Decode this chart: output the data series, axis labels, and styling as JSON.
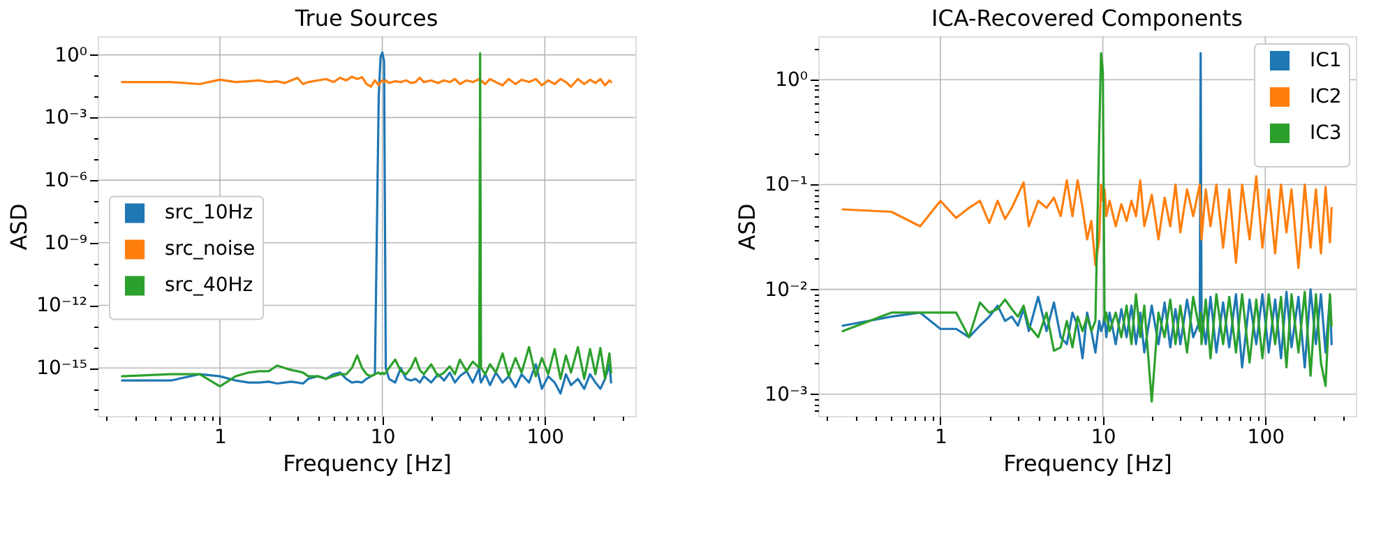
{
  "chart_data": [
    {
      "type": "line",
      "title": "True Sources",
      "xlabel": "Frequency [Hz]",
      "ylabel": "ASD",
      "log": "xy",
      "grid": true,
      "legend": "left",
      "line_style": "solid",
      "marker": "none",
      "xlim": [
        0.177,
        361
      ],
      "xticks": [
        {
          "value": 0.2,
          "label": null
        },
        {
          "value": 0.3,
          "label": null
        },
        {
          "value": 0.4,
          "label": null
        },
        {
          "value": 0.5,
          "label": null
        },
        {
          "value": 0.6,
          "label": null
        },
        {
          "value": 0.7,
          "label": null
        },
        {
          "value": 0.8,
          "label": null
        },
        {
          "value": 0.9,
          "label": null
        },
        1,
        {
          "value": 2,
          "label": null
        },
        {
          "value": 3,
          "label": null
        },
        {
          "value": 4,
          "label": null
        },
        {
          "value": 5,
          "label": null
        },
        {
          "value": 6,
          "label": null
        },
        {
          "value": 7,
          "label": null
        },
        {
          "value": 8,
          "label": null
        },
        {
          "value": 9,
          "label": null
        },
        10,
        {
          "value": 20,
          "label": null
        },
        {
          "value": 30,
          "label": null
        },
        {
          "value": 40,
          "label": null
        },
        {
          "value": 50,
          "label": null
        },
        {
          "value": 60,
          "label": null
        },
        {
          "value": 70,
          "label": null
        },
        {
          "value": 80,
          "label": null
        },
        {
          "value": 90,
          "label": null
        },
        100,
        {
          "value": 200,
          "label": null
        },
        {
          "value": 300,
          "label": null
        }
      ],
      "ylim": [
        5e-18,
        7.8
      ],
      "yticks": [
        {
          "value": 1,
          "label": "10⁰"
        },
        {
          "value": 0.1,
          "label": null
        },
        {
          "value": 0.01,
          "label": null
        },
        {
          "value": 0.001,
          "label": "10⁻³"
        },
        {
          "value": 0.0001,
          "label": null
        },
        {
          "value": 1e-05,
          "label": null
        },
        {
          "value": 1e-06,
          "label": "10⁻⁶"
        },
        {
          "value": 1e-07,
          "label": null
        },
        {
          "value": 1e-08,
          "label": null
        },
        {
          "value": 1e-09,
          "label": "10⁻⁹"
        },
        {
          "value": 1e-10,
          "label": null
        },
        {
          "value": 1e-11,
          "label": null
        },
        {
          "value": 1e-12,
          "label": "10⁻¹²"
        },
        {
          "value": 1e-13,
          "label": null
        },
        {
          "value": 1e-14,
          "label": null
        },
        {
          "value": 1e-15,
          "label": "10⁻¹⁵"
        },
        {
          "value": 1e-16,
          "label": null
        },
        {
          "value": 1e-17,
          "label": null
        }
      ],
      "x": [
        0.25,
        0.5,
        0.75,
        1,
        1.25,
        1.5,
        1.75,
        2,
        2.25,
        2.5,
        2.75,
        3,
        3.25,
        3.5,
        4,
        4.5,
        5,
        5.5,
        6,
        6.5,
        7,
        7.5,
        8,
        8.5,
        9,
        9.5,
        9.75,
        10,
        10.25,
        10.5,
        11,
        12,
        13,
        14,
        15,
        16,
        17,
        18,
        20,
        22,
        24,
        26,
        28,
        30,
        33,
        36,
        39.5,
        40,
        40.5,
        43,
        46,
        50,
        55,
        60,
        66,
        72,
        80,
        88,
        96,
        105,
        115,
        125,
        135,
        145,
        160,
        175,
        190,
        205,
        220,
        235,
        250,
        256
      ],
      "series": [
        {
          "name": "src_10Hz",
          "color": "#1f77b4",
          "values": [
            2.5e-16,
            2.5e-16,
            5e-16,
            4e-16,
            2.5e-16,
            2e-16,
            2e-16,
            2.2e-16,
            1.8e-16,
            2e-16,
            2.2e-16,
            2e-16,
            1.8e-16,
            3e-16,
            4e-16,
            3e-16,
            5e-16,
            6e-16,
            3e-16,
            2e-16,
            2.2e-16,
            2e-16,
            3e-16,
            4e-16,
            5e-16,
            0.01,
            0.8,
            1.3,
            0.5,
            1e-15,
            3e-16,
            2e-16,
            1e-15,
            3e-16,
            2.5e-16,
            3e-16,
            2e-16,
            4e-16,
            2e-16,
            5e-16,
            2.5e-16,
            6e-16,
            2e-16,
            4e-16,
            7e-16,
            2e-16,
            1e-15,
            3e-16,
            2e-16,
            5e-16,
            1.5e-16,
            6e-16,
            2e-16,
            4e-16,
            1.2e-16,
            5e-16,
            2e-16,
            1.5e-15,
            1e-16,
            4e-16,
            2e-16,
            6e-17,
            5e-16,
            1.5e-16,
            3e-16,
            1e-16,
            5e-16,
            2e-16,
            1e-16,
            3e-16,
            1.5e-15,
            2e-16
          ]
        },
        {
          "name": "src_noise",
          "color": "#ff7f0e",
          "values": [
            0.05,
            0.05,
            0.04,
            0.065,
            0.05,
            0.055,
            0.06,
            0.05,
            0.055,
            0.045,
            0.06,
            0.08,
            0.04,
            0.05,
            0.06,
            0.07,
            0.05,
            0.08,
            0.06,
            0.09,
            0.07,
            0.085,
            0.04,
            0.03,
            0.06,
            0.035,
            0.05,
            0.06,
            0.05,
            0.06,
            0.045,
            0.055,
            0.05,
            0.06,
            0.045,
            0.05,
            0.08,
            0.05,
            0.06,
            0.045,
            0.06,
            0.05,
            0.07,
            0.04,
            0.06,
            0.05,
            0.07,
            0.045,
            0.06,
            0.04,
            0.07,
            0.05,
            0.035,
            0.07,
            0.04,
            0.065,
            0.05,
            0.07,
            0.035,
            0.06,
            0.04,
            0.07,
            0.05,
            0.03,
            0.07,
            0.04,
            0.065,
            0.045,
            0.07,
            0.035,
            0.06,
            0.05
          ]
        },
        {
          "name": "src_40Hz",
          "color": "#2ca02c",
          "values": [
            4e-16,
            5e-16,
            5e-16,
            1.3e-16,
            4e-16,
            6e-16,
            7e-16,
            7e-16,
            1.3e-15,
            1e-15,
            8e-16,
            7e-16,
            6e-16,
            4e-16,
            4e-16,
            3e-16,
            4e-16,
            5e-16,
            5e-16,
            1e-15,
            4e-15,
            1e-15,
            5e-16,
            4e-16,
            5e-16,
            6e-16,
            5e-16,
            6e-16,
            5e-16,
            6e-16,
            1e-15,
            2.5e-15,
            7e-16,
            5e-16,
            1e-15,
            3e-15,
            8e-16,
            5e-16,
            1.5e-15,
            4e-16,
            6e-16,
            1.2e-15,
            5e-16,
            2.5e-15,
            7e-16,
            2e-15,
            1e-15,
            1.2,
            1e-15,
            5e-16,
            1.5e-15,
            6e-16,
            5e-15,
            4e-16,
            3e-15,
            6e-16,
            1e-14,
            4e-16,
            3e-15,
            5e-16,
            8e-15,
            3e-16,
            4e-15,
            6e-16,
            1e-14,
            3e-16,
            8e-15,
            5e-16,
            9e-15,
            3e-16,
            5e-15,
            6e-16
          ]
        }
      ]
    },
    {
      "type": "line",
      "title": "ICA-Recovered Components",
      "xlabel": "Frequency [Hz]",
      "ylabel": "ASD",
      "log": "xy",
      "grid": true,
      "legend": "top right",
      "line_style": "solid",
      "marker": "none",
      "xlim": [
        0.177,
        361
      ],
      "xticks": [
        {
          "value": 0.2,
          "label": null
        },
        {
          "value": 0.3,
          "label": null
        },
        {
          "value": 0.4,
          "label": null
        },
        {
          "value": 0.5,
          "label": null
        },
        {
          "value": 0.6,
          "label": null
        },
        {
          "value": 0.7,
          "label": null
        },
        {
          "value": 0.8,
          "label": null
        },
        {
          "value": 0.9,
          "label": null
        },
        1,
        {
          "value": 2,
          "label": null
        },
        {
          "value": 3,
          "label": null
        },
        {
          "value": 4,
          "label": null
        },
        {
          "value": 5,
          "label": null
        },
        {
          "value": 6,
          "label": null
        },
        {
          "value": 7,
          "label": null
        },
        {
          "value": 8,
          "label": null
        },
        {
          "value": 9,
          "label": null
        },
        10,
        {
          "value": 20,
          "label": null
        },
        {
          "value": 30,
          "label": null
        },
        {
          "value": 40,
          "label": null
        },
        {
          "value": 50,
          "label": null
        },
        {
          "value": 60,
          "label": null
        },
        {
          "value": 70,
          "label": null
        },
        {
          "value": 80,
          "label": null
        },
        {
          "value": 90,
          "label": null
        },
        100,
        {
          "value": 200,
          "label": null
        },
        {
          "value": 300,
          "label": null
        }
      ],
      "ylim": [
        0.00062,
        2.6
      ],
      "yticks": [
        {
          "value": 0.0007,
          "label": null
        },
        {
          "value": 0.0008,
          "label": null
        },
        {
          "value": 0.0009,
          "label": null
        },
        {
          "value": 0.001,
          "label": "10⁻³"
        },
        {
          "value": 0.002,
          "label": null
        },
        {
          "value": 0.003,
          "label": null
        },
        {
          "value": 0.004,
          "label": null
        },
        {
          "value": 0.005,
          "label": null
        },
        {
          "value": 0.006,
          "label": null
        },
        {
          "value": 0.007,
          "label": null
        },
        {
          "value": 0.008,
          "label": null
        },
        {
          "value": 0.009,
          "label": null
        },
        {
          "value": 0.01,
          "label": "10⁻²"
        },
        {
          "value": 0.02,
          "label": null
        },
        {
          "value": 0.03,
          "label": null
        },
        {
          "value": 0.04,
          "label": null
        },
        {
          "value": 0.05,
          "label": null
        },
        {
          "value": 0.06,
          "label": null
        },
        {
          "value": 0.07,
          "label": null
        },
        {
          "value": 0.08,
          "label": null
        },
        {
          "value": 0.09,
          "label": null
        },
        {
          "value": 0.1,
          "label": "10⁻¹"
        },
        {
          "value": 0.2,
          "label": null
        },
        {
          "value": 0.3,
          "label": null
        },
        {
          "value": 0.4,
          "label": null
        },
        {
          "value": 0.5,
          "label": null
        },
        {
          "value": 0.6,
          "label": null
        },
        {
          "value": 0.7,
          "label": null
        },
        {
          "value": 0.8,
          "label": null
        },
        {
          "value": 0.9,
          "label": null
        },
        {
          "value": 1,
          "label": "10⁰"
        },
        {
          "value": 2,
          "label": null
        }
      ],
      "x": [
        0.25,
        0.5,
        0.75,
        1,
        1.25,
        1.5,
        1.75,
        2,
        2.25,
        2.5,
        2.75,
        3,
        3.25,
        3.5,
        4,
        4.5,
        5,
        5.5,
        6,
        6.5,
        7,
        7.5,
        8,
        8.5,
        9,
        9.5,
        9.75,
        10,
        10.25,
        10.5,
        11,
        12,
        13,
        14,
        15,
        16,
        17,
        18,
        20,
        22,
        24,
        26,
        28,
        30,
        33,
        36,
        39.5,
        40,
        40.5,
        43,
        46,
        50,
        55,
        60,
        66,
        72,
        80,
        88,
        96,
        105,
        115,
        125,
        135,
        145,
        160,
        175,
        190,
        205,
        220,
        235,
        250,
        256
      ],
      "series": [
        {
          "name": "IC1",
          "color": "#1f77b4",
          "values": [
            0.0045,
            0.0055,
            0.006,
            0.0042,
            0.0042,
            0.0035,
            0.0045,
            0.0055,
            0.007,
            0.005,
            0.0055,
            0.0045,
            0.0065,
            0.004,
            0.0085,
            0.004,
            0.0075,
            0.0035,
            0.003,
            0.006,
            0.0045,
            0.0022,
            0.006,
            0.004,
            0.0025,
            0.005,
            0.004,
            0.0045,
            0.0055,
            0.0035,
            0.006,
            0.003,
            0.0065,
            0.0035,
            0.007,
            0.003,
            0.006,
            0.0025,
            0.007,
            0.003,
            0.0075,
            0.0028,
            0.0065,
            0.003,
            0.008,
            0.0035,
            0.005,
            1.8,
            0.006,
            0.003,
            0.0085,
            0.0025,
            0.0075,
            0.0028,
            0.009,
            0.0018,
            0.008,
            0.003,
            0.009,
            0.0025,
            0.008,
            0.0022,
            0.0095,
            0.0028,
            0.0085,
            0.0018,
            0.01,
            0.003,
            0.009,
            0.0025,
            0.0085,
            0.003
          ]
        },
        {
          "name": "IC2",
          "color": "#ff7f0e",
          "values": [
            0.058,
            0.055,
            0.04,
            0.07,
            0.048,
            0.06,
            0.07,
            0.043,
            0.07,
            0.047,
            0.06,
            0.08,
            0.105,
            0.04,
            0.07,
            0.06,
            0.075,
            0.05,
            0.11,
            0.05,
            0.11,
            0.06,
            0.03,
            0.045,
            0.017,
            0.03,
            0.1,
            0.07,
            0.09,
            0.05,
            0.07,
            0.04,
            0.065,
            0.045,
            0.07,
            0.05,
            0.11,
            0.04,
            0.08,
            0.03,
            0.075,
            0.04,
            0.1,
            0.035,
            0.09,
            0.05,
            0.1,
            0.06,
            0.03,
            0.09,
            0.04,
            0.1,
            0.025,
            0.09,
            0.018,
            0.1,
            0.03,
            0.12,
            0.025,
            0.09,
            0.022,
            0.1,
            0.035,
            0.09,
            0.016,
            0.1,
            0.025,
            0.09,
            0.022,
            0.095,
            0.028,
            0.06
          ]
        },
        {
          "name": "IC3",
          "color": "#2ca02c",
          "values": [
            0.004,
            0.006,
            0.006,
            0.006,
            0.006,
            0.0035,
            0.0075,
            0.006,
            0.0065,
            0.008,
            0.0065,
            0.0055,
            0.007,
            0.0045,
            0.0035,
            0.006,
            0.0026,
            0.0028,
            0.005,
            0.0028,
            0.0055,
            0.004,
            0.0055,
            0.004,
            0.005,
            0.3,
            1.8,
            1.2,
            0.005,
            0.006,
            0.004,
            0.006,
            0.0035,
            0.007,
            0.003,
            0.009,
            0.0035,
            0.007,
            0.00085,
            0.006,
            0.0035,
            0.008,
            0.003,
            0.007,
            0.0025,
            0.0085,
            0.004,
            0.006,
            0.003,
            0.008,
            0.0022,
            0.009,
            0.003,
            0.0085,
            0.0025,
            0.009,
            0.002,
            0.008,
            0.0022,
            0.009,
            0.003,
            0.0085,
            0.0018,
            0.009,
            0.0025,
            0.0095,
            0.0015,
            0.009,
            0.002,
            0.0012,
            0.009,
            0.0045
          ]
        }
      ]
    }
  ]
}
